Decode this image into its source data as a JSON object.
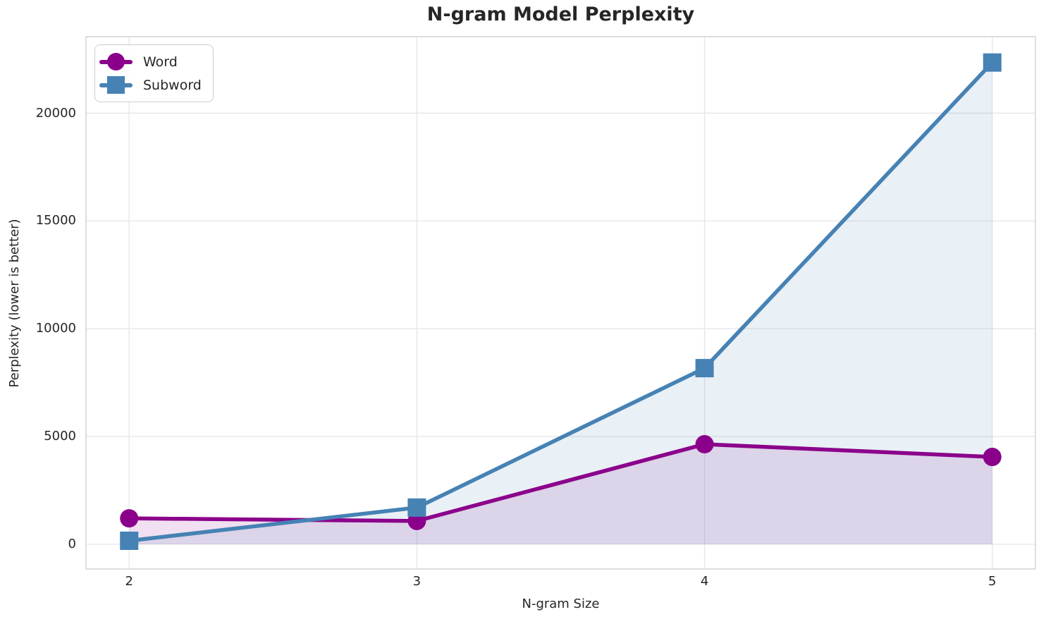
{
  "chart_data": {
    "type": "line",
    "title": "N-gram Model Perplexity",
    "xlabel": "N-gram Size",
    "ylabel": "Perplexity (lower is better)",
    "x": [
      2,
      3,
      4,
      5
    ],
    "series": [
      {
        "name": "Word",
        "marker": "circle",
        "color": "#8B008B",
        "fill_alpha": 0.12,
        "values": [
          1200,
          1080,
          4640,
          4050
        ]
      },
      {
        "name": "Subword",
        "marker": "square",
        "color": "#4682B4",
        "fill_alpha": 0.12,
        "values": [
          160,
          1700,
          8170,
          22350
        ]
      }
    ],
    "xticks": [
      2,
      3,
      4,
      5
    ],
    "yticks": [
      0,
      5000,
      10000,
      15000,
      20000
    ],
    "xlim": [
      1.85,
      5.15
    ],
    "ylim": [
      -1150,
      23550
    ],
    "grid": true,
    "area_fill": true,
    "fill_baseline": 0,
    "legend_position": "upper left",
    "colors": {
      "plot_bg": "#ffffff",
      "grid": "#e7e7ec",
      "frame": "#d5d5dc",
      "text": "#262626"
    }
  }
}
